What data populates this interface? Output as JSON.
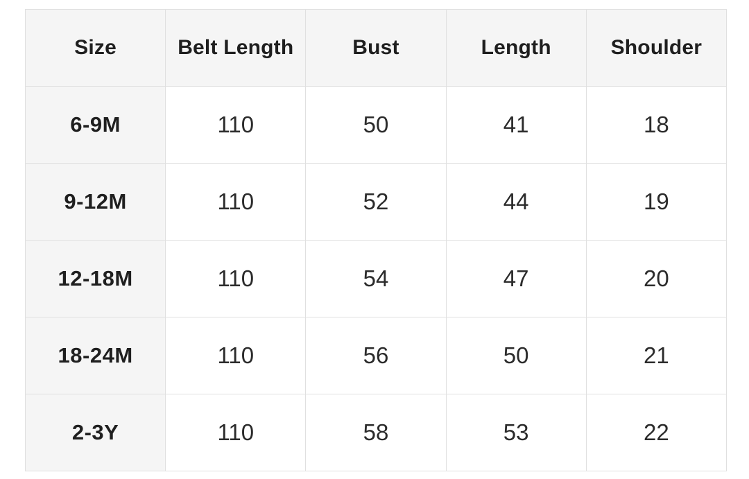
{
  "chart_data": {
    "type": "table",
    "columns": [
      "Size",
      "Belt Length",
      "Bust",
      "Length",
      "Shoulder"
    ],
    "rows": [
      [
        "6-9M",
        "110",
        "50",
        "41",
        "18"
      ],
      [
        "9-12M",
        "110",
        "52",
        "44",
        "19"
      ],
      [
        "12-18M",
        "110",
        "54",
        "47",
        "20"
      ],
      [
        "18-24M",
        "110",
        "56",
        "50",
        "21"
      ],
      [
        "2-3Y",
        "110",
        "58",
        "53",
        "22"
      ]
    ],
    "layout_hints": {
      "header_row_shaded": true,
      "first_column_shaded": true,
      "grid": true
    }
  },
  "colors": {
    "header_bg": "#f5f5f5",
    "row_label_bg": "#f5f5f5",
    "cell_bg": "#ffffff",
    "border": "#e0e0e0",
    "text": "#212121",
    "page_bg": "#ffffff"
  }
}
